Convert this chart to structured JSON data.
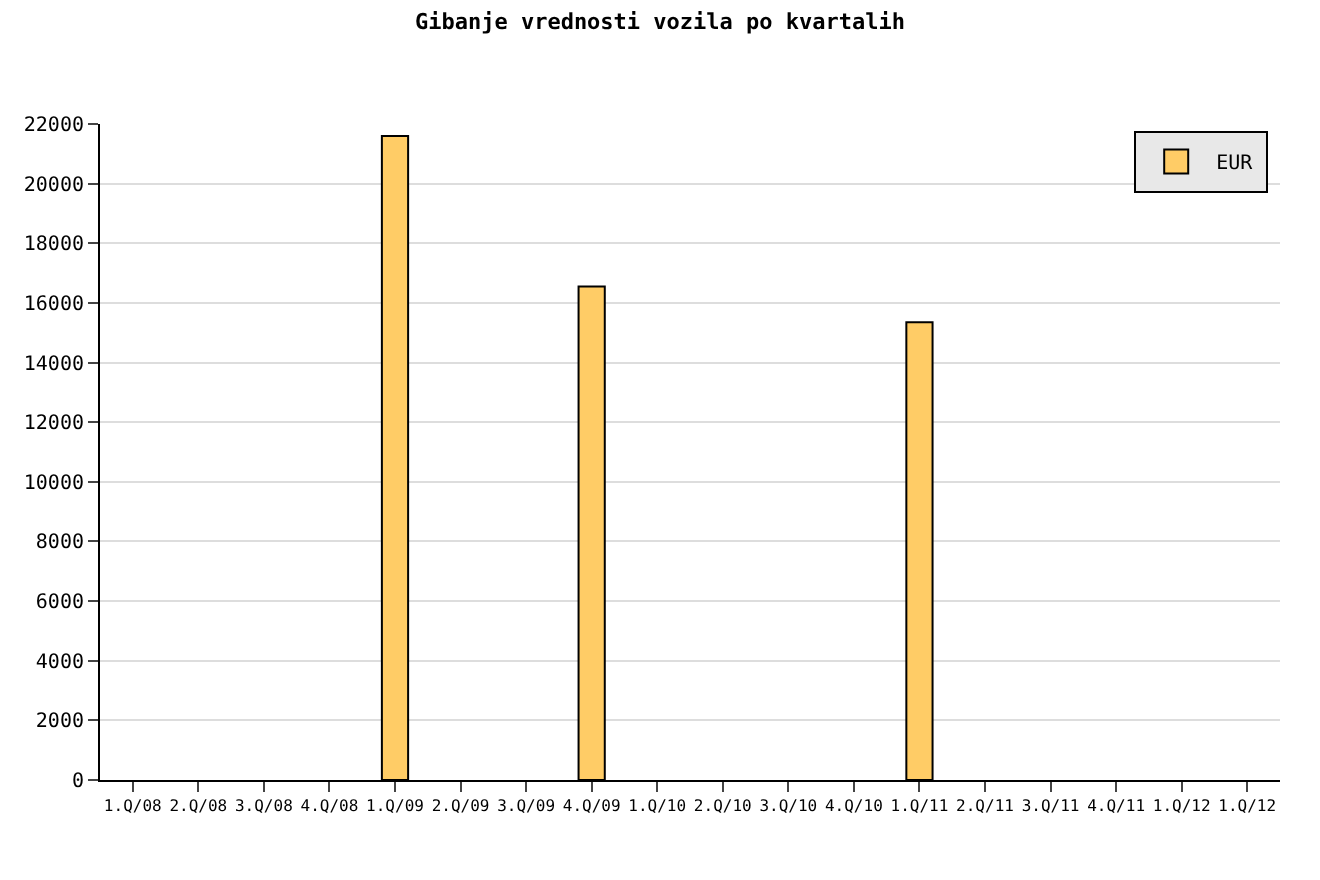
{
  "chart_data": {
    "type": "bar",
    "title": "Gibanje vrednosti vozila po kvartalih",
    "categories": [
      "1.Q/08",
      "2.Q/08",
      "3.Q/08",
      "4.Q/08",
      "1.Q/09",
      "2.Q/09",
      "3.Q/09",
      "4.Q/09",
      "1.Q/10",
      "2.Q/10",
      "3.Q/10",
      "4.Q/10",
      "1.Q/11",
      "2.Q/11",
      "3.Q/11",
      "4.Q/11",
      "1.Q/12",
      "1.Q/12"
    ],
    "series": [
      {
        "name": "EUR",
        "color": "#ffcc66",
        "values": [
          null,
          null,
          null,
          null,
          21600,
          null,
          null,
          16550,
          null,
          null,
          null,
          null,
          15350,
          null,
          null,
          null,
          null,
          null
        ]
      }
    ],
    "ylim": [
      0,
      22000
    ],
    "yticks": [
      0,
      2000,
      4000,
      6000,
      8000,
      10000,
      12000,
      14000,
      16000,
      18000,
      20000,
      22000
    ],
    "grid": "y",
    "legend": "top right"
  }
}
